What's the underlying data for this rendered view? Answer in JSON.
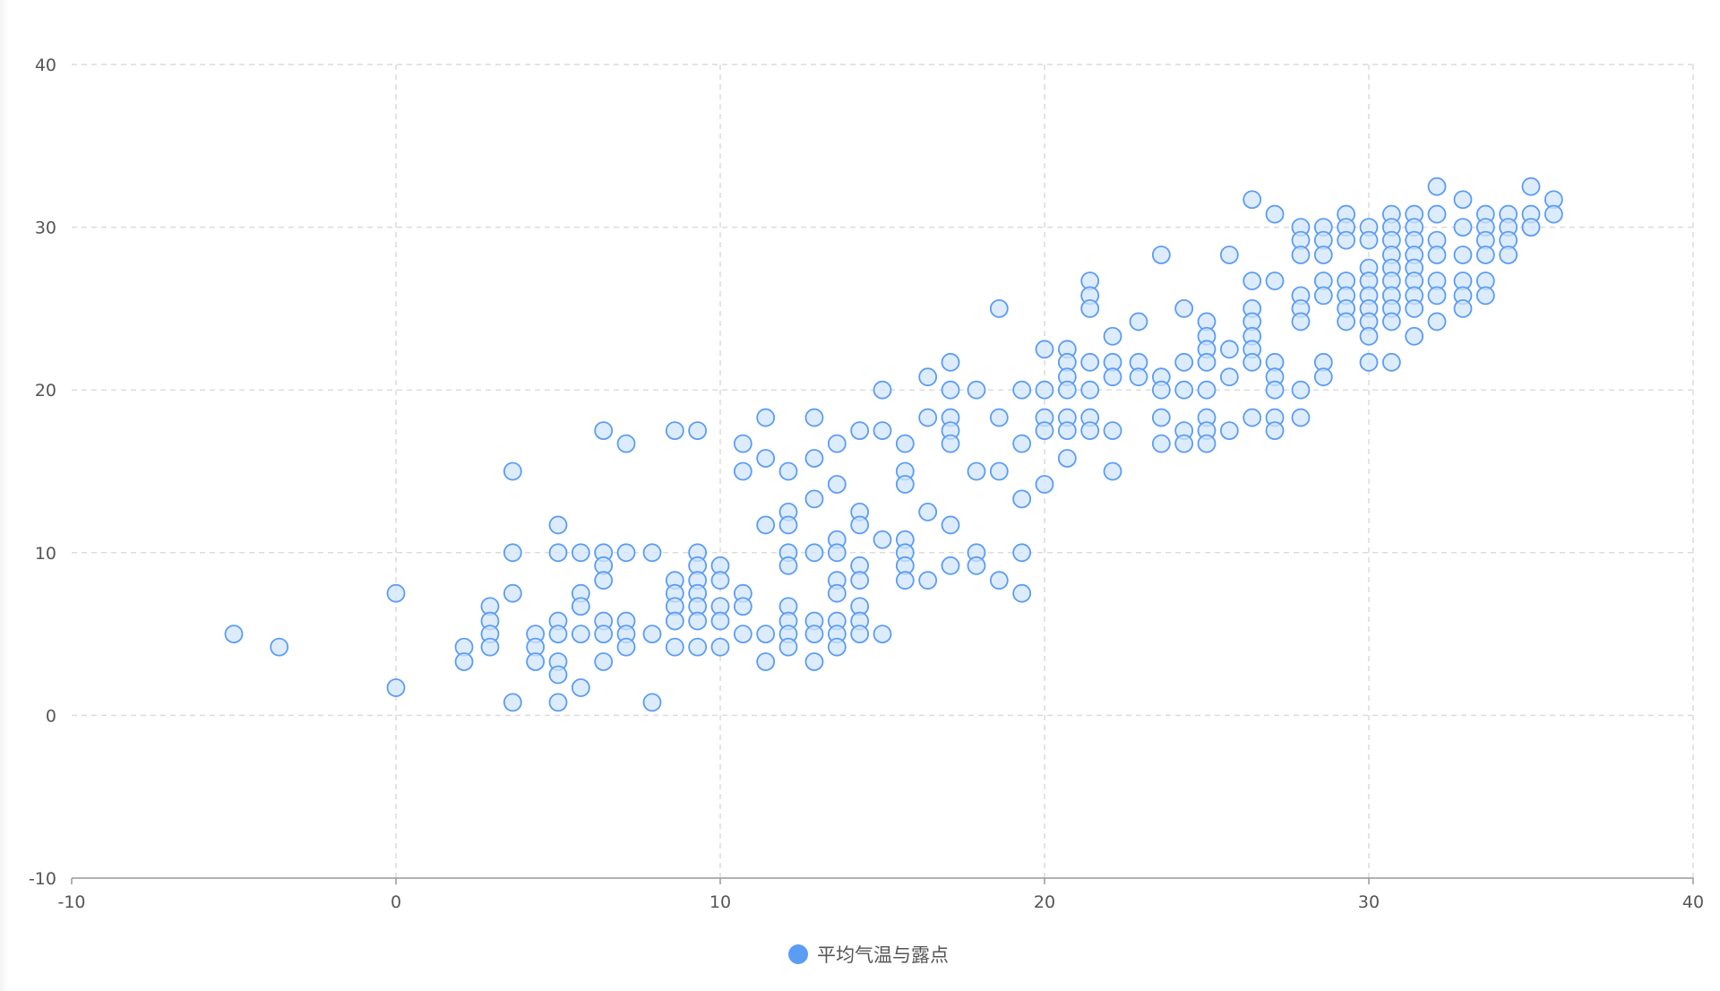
{
  "chart_data": {
    "type": "scatter",
    "title": "",
    "xlabel": "",
    "ylabel": "",
    "xlim": [
      -10,
      40
    ],
    "ylim": [
      -10,
      40
    ],
    "x_ticks": [
      "-10",
      "0",
      "10",
      "20",
      "30",
      "40"
    ],
    "y_ticks": [
      "-10",
      "0",
      "10",
      "20",
      "30",
      "40"
    ],
    "grid": true,
    "legend_position": "bottom-center",
    "series": [
      {
        "name": "平均气温与露点",
        "color": "#5b9cf5",
        "fill": "#d2e5fb",
        "points": [
          [
            -5,
            5
          ],
          [
            -3.6,
            4.2
          ],
          [
            0,
            7.5
          ],
          [
            0,
            1.7
          ],
          [
            2.1,
            4.2
          ],
          [
            2.1,
            3.3
          ],
          [
            2.9,
            6.7
          ],
          [
            2.9,
            5.8
          ],
          [
            2.9,
            5
          ],
          [
            2.9,
            4.2
          ],
          [
            3.6,
            15
          ],
          [
            3.6,
            10
          ],
          [
            3.6,
            7.5
          ],
          [
            3.6,
            0.8
          ],
          [
            4.3,
            5
          ],
          [
            4.3,
            4.2
          ],
          [
            4.3,
            3.3
          ],
          [
            5,
            11.7
          ],
          [
            5,
            10
          ],
          [
            5,
            5.8
          ],
          [
            5,
            5
          ],
          [
            5,
            3.3
          ],
          [
            5,
            2.5
          ],
          [
            5,
            0.8
          ],
          [
            5.7,
            10
          ],
          [
            5.7,
            7.5
          ],
          [
            5.7,
            6.7
          ],
          [
            5.7,
            5
          ],
          [
            5.7,
            1.7
          ],
          [
            6.4,
            17.5
          ],
          [
            6.4,
            10
          ],
          [
            6.4,
            9.2
          ],
          [
            6.4,
            8.3
          ],
          [
            6.4,
            5.8
          ],
          [
            6.4,
            5
          ],
          [
            6.4,
            3.3
          ],
          [
            7.1,
            16.7
          ],
          [
            7.1,
            10
          ],
          [
            7.1,
            5.8
          ],
          [
            7.1,
            5
          ],
          [
            7.1,
            4.2
          ],
          [
            7.9,
            10
          ],
          [
            7.9,
            5
          ],
          [
            7.9,
            0.8
          ],
          [
            8.6,
            17.5
          ],
          [
            8.6,
            8.3
          ],
          [
            8.6,
            7.5
          ],
          [
            8.6,
            6.7
          ],
          [
            8.6,
            5.8
          ],
          [
            8.6,
            4.2
          ],
          [
            9.3,
            17.5
          ],
          [
            9.3,
            10
          ],
          [
            9.3,
            9.2
          ],
          [
            9.3,
            8.3
          ],
          [
            9.3,
            7.5
          ],
          [
            9.3,
            6.7
          ],
          [
            9.3,
            5.8
          ],
          [
            9.3,
            4.2
          ],
          [
            10,
            9.2
          ],
          [
            10,
            8.3
          ],
          [
            10,
            6.7
          ],
          [
            10,
            5.8
          ],
          [
            10,
            4.2
          ],
          [
            10.7,
            16.7
          ],
          [
            10.7,
            15
          ],
          [
            10.7,
            7.5
          ],
          [
            10.7,
            6.7
          ],
          [
            10.7,
            5
          ],
          [
            11.4,
            18.3
          ],
          [
            11.4,
            15.8
          ],
          [
            11.4,
            11.7
          ],
          [
            11.4,
            5
          ],
          [
            11.4,
            3.3
          ],
          [
            12.1,
            15
          ],
          [
            12.1,
            12.5
          ],
          [
            12.1,
            11.7
          ],
          [
            12.1,
            10
          ],
          [
            12.1,
            9.2
          ],
          [
            12.1,
            6.7
          ],
          [
            12.1,
            5.8
          ],
          [
            12.1,
            5
          ],
          [
            12.1,
            4.2
          ],
          [
            12.9,
            18.3
          ],
          [
            12.9,
            15.8
          ],
          [
            12.9,
            13.3
          ],
          [
            12.9,
            10
          ],
          [
            12.9,
            5.8
          ],
          [
            12.9,
            5
          ],
          [
            12.9,
            3.3
          ],
          [
            13.6,
            16.7
          ],
          [
            13.6,
            14.2
          ],
          [
            13.6,
            10.8
          ],
          [
            13.6,
            10
          ],
          [
            13.6,
            8.3
          ],
          [
            13.6,
            7.5
          ],
          [
            13.6,
            5.8
          ],
          [
            13.6,
            5
          ],
          [
            13.6,
            4.2
          ],
          [
            14.3,
            17.5
          ],
          [
            14.3,
            12.5
          ],
          [
            14.3,
            11.7
          ],
          [
            14.3,
            9.2
          ],
          [
            14.3,
            8.3
          ],
          [
            14.3,
            6.7
          ],
          [
            14.3,
            5.8
          ],
          [
            14.3,
            5
          ],
          [
            15,
            20
          ],
          [
            15,
            17.5
          ],
          [
            15,
            10.8
          ],
          [
            15,
            5
          ],
          [
            15.7,
            16.7
          ],
          [
            15.7,
            15
          ],
          [
            15.7,
            14.2
          ],
          [
            15.7,
            10.8
          ],
          [
            15.7,
            10
          ],
          [
            15.7,
            9.2
          ],
          [
            15.7,
            8.3
          ],
          [
            16.4,
            20.8
          ],
          [
            16.4,
            18.3
          ],
          [
            16.4,
            12.5
          ],
          [
            16.4,
            8.3
          ],
          [
            17.1,
            21.7
          ],
          [
            17.1,
            20
          ],
          [
            17.1,
            18.3
          ],
          [
            17.1,
            17.5
          ],
          [
            17.1,
            16.7
          ],
          [
            17.1,
            11.7
          ],
          [
            17.1,
            9.2
          ],
          [
            17.9,
            20
          ],
          [
            17.9,
            15
          ],
          [
            17.9,
            10
          ],
          [
            17.9,
            9.2
          ],
          [
            18.6,
            25
          ],
          [
            18.6,
            18.3
          ],
          [
            18.6,
            15
          ],
          [
            18.6,
            8.3
          ],
          [
            19.3,
            20
          ],
          [
            19.3,
            16.7
          ],
          [
            19.3,
            13.3
          ],
          [
            19.3,
            10
          ],
          [
            19.3,
            7.5
          ],
          [
            20,
            22.5
          ],
          [
            20,
            20
          ],
          [
            20,
            18.3
          ],
          [
            20,
            17.5
          ],
          [
            20,
            14.2
          ],
          [
            20.7,
            22.5
          ],
          [
            20.7,
            21.7
          ],
          [
            20.7,
            20.8
          ],
          [
            20.7,
            20
          ],
          [
            20.7,
            18.3
          ],
          [
            20.7,
            17.5
          ],
          [
            20.7,
            15.8
          ],
          [
            21.4,
            26.7
          ],
          [
            21.4,
            25.8
          ],
          [
            21.4,
            25
          ],
          [
            21.4,
            21.7
          ],
          [
            21.4,
            20
          ],
          [
            21.4,
            18.3
          ],
          [
            21.4,
            17.5
          ],
          [
            22.1,
            23.3
          ],
          [
            22.1,
            21.7
          ],
          [
            22.1,
            20.8
          ],
          [
            22.1,
            17.5
          ],
          [
            22.1,
            15
          ],
          [
            22.9,
            24.2
          ],
          [
            22.9,
            21.7
          ],
          [
            22.9,
            20.8
          ],
          [
            23.6,
            28.3
          ],
          [
            23.6,
            20.8
          ],
          [
            23.6,
            20
          ],
          [
            23.6,
            18.3
          ],
          [
            23.6,
            16.7
          ],
          [
            24.3,
            25
          ],
          [
            24.3,
            21.7
          ],
          [
            24.3,
            20
          ],
          [
            24.3,
            17.5
          ],
          [
            24.3,
            16.7
          ],
          [
            25,
            24.2
          ],
          [
            25,
            23.3
          ],
          [
            25,
            22.5
          ],
          [
            25,
            21.7
          ],
          [
            25,
            20
          ],
          [
            25,
            18.3
          ],
          [
            25,
            17.5
          ],
          [
            25,
            16.7
          ],
          [
            25.7,
            28.3
          ],
          [
            25.7,
            22.5
          ],
          [
            25.7,
            20.8
          ],
          [
            25.7,
            17.5
          ],
          [
            26.4,
            31.7
          ],
          [
            26.4,
            26.7
          ],
          [
            26.4,
            25
          ],
          [
            26.4,
            24.2
          ],
          [
            26.4,
            23.3
          ],
          [
            26.4,
            22.5
          ],
          [
            26.4,
            21.7
          ],
          [
            26.4,
            18.3
          ],
          [
            27.1,
            30.8
          ],
          [
            27.1,
            26.7
          ],
          [
            27.1,
            21.7
          ],
          [
            27.1,
            20.8
          ],
          [
            27.1,
            20
          ],
          [
            27.1,
            18.3
          ],
          [
            27.1,
            17.5
          ],
          [
            27.9,
            30
          ],
          [
            27.9,
            29.2
          ],
          [
            27.9,
            28.3
          ],
          [
            27.9,
            25.8
          ],
          [
            27.9,
            25
          ],
          [
            27.9,
            24.2
          ],
          [
            27.9,
            20
          ],
          [
            27.9,
            18.3
          ],
          [
            28.6,
            30
          ],
          [
            28.6,
            29.2
          ],
          [
            28.6,
            28.3
          ],
          [
            28.6,
            26.7
          ],
          [
            28.6,
            25.8
          ],
          [
            28.6,
            21.7
          ],
          [
            28.6,
            20.8
          ],
          [
            29.3,
            30.8
          ],
          [
            29.3,
            30
          ],
          [
            29.3,
            29.2
          ],
          [
            29.3,
            26.7
          ],
          [
            29.3,
            25.8
          ],
          [
            29.3,
            25
          ],
          [
            29.3,
            24.2
          ],
          [
            30,
            30
          ],
          [
            30,
            29.2
          ],
          [
            30,
            27.5
          ],
          [
            30,
            26.7
          ],
          [
            30,
            25.8
          ],
          [
            30,
            25
          ],
          [
            30,
            24.2
          ],
          [
            30,
            23.3
          ],
          [
            30,
            21.7
          ],
          [
            30.7,
            30.8
          ],
          [
            30.7,
            30
          ],
          [
            30.7,
            29.2
          ],
          [
            30.7,
            28.3
          ],
          [
            30.7,
            27.5
          ],
          [
            30.7,
            26.7
          ],
          [
            30.7,
            25.8
          ],
          [
            30.7,
            25
          ],
          [
            30.7,
            24.2
          ],
          [
            30.7,
            21.7
          ],
          [
            31.4,
            30.8
          ],
          [
            31.4,
            30
          ],
          [
            31.4,
            29.2
          ],
          [
            31.4,
            28.3
          ],
          [
            31.4,
            27.5
          ],
          [
            31.4,
            26.7
          ],
          [
            31.4,
            25.8
          ],
          [
            31.4,
            25
          ],
          [
            31.4,
            23.3
          ],
          [
            32.1,
            32.5
          ],
          [
            32.1,
            30.8
          ],
          [
            32.1,
            29.2
          ],
          [
            32.1,
            28.3
          ],
          [
            32.1,
            26.7
          ],
          [
            32.1,
            25.8
          ],
          [
            32.1,
            24.2
          ],
          [
            32.9,
            31.7
          ],
          [
            32.9,
            30
          ],
          [
            32.9,
            28.3
          ],
          [
            32.9,
            26.7
          ],
          [
            32.9,
            25.8
          ],
          [
            32.9,
            25
          ],
          [
            33.6,
            30.8
          ],
          [
            33.6,
            30
          ],
          [
            33.6,
            29.2
          ],
          [
            33.6,
            28.3
          ],
          [
            33.6,
            26.7
          ],
          [
            33.6,
            25.8
          ],
          [
            34.3,
            30.8
          ],
          [
            34.3,
            30
          ],
          [
            34.3,
            29.2
          ],
          [
            34.3,
            28.3
          ],
          [
            35,
            32.5
          ],
          [
            35,
            30.8
          ],
          [
            35,
            30
          ],
          [
            35.7,
            31.7
          ],
          [
            35.7,
            30.8
          ]
        ]
      }
    ]
  }
}
